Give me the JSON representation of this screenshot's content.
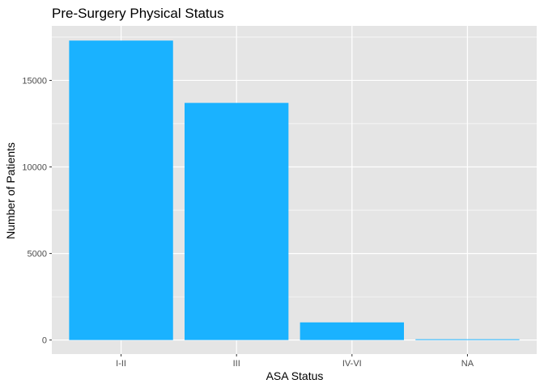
{
  "chart_data": {
    "type": "bar",
    "title": "Pre-Surgery Physical Status",
    "xlabel": "ASA Status",
    "ylabel": "Number of Patients",
    "categories": [
      "I-II",
      "III",
      "IV-VI",
      "NA"
    ],
    "values": [
      17300,
      13700,
      1020,
      45
    ],
    "ylim": [
      -810,
      18150
    ],
    "yticks": [
      0,
      5000,
      10000,
      15000
    ],
    "grid": true,
    "legend": "none",
    "bar_color": "#1AB2FF",
    "panel_background": "#E5E5E5",
    "grid_color": "#FFFFFF",
    "tick_label_color": "#4D4D4D"
  }
}
